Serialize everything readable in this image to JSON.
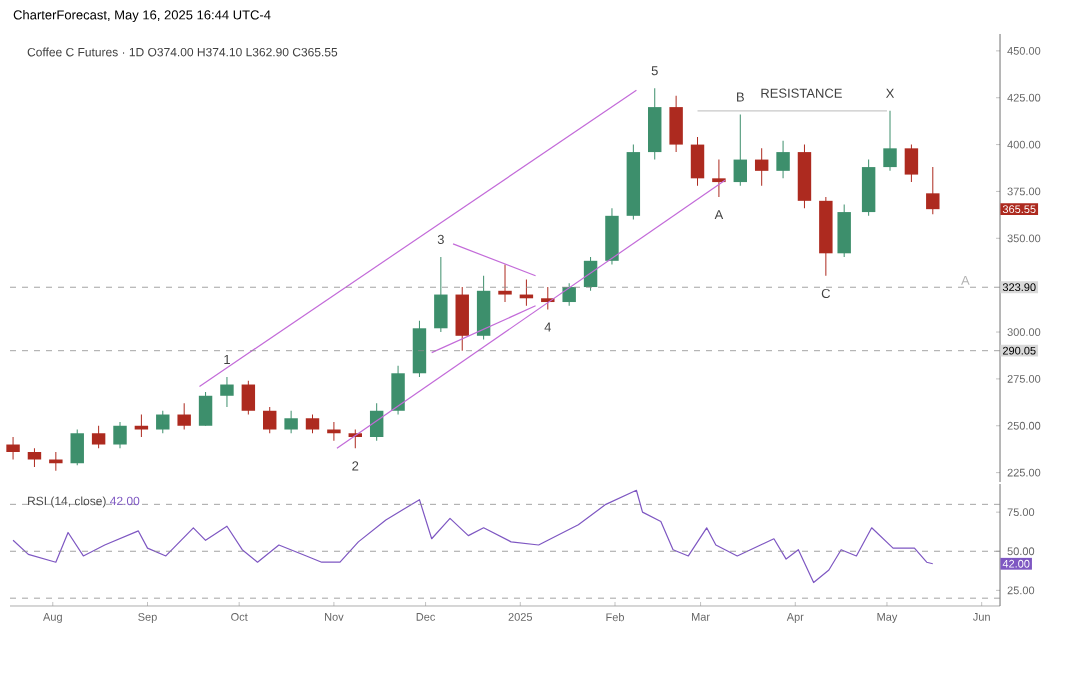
{
  "chart_data": [
    {
      "type": "candlestick",
      "title": "Coffee C Futures · 1D   O374.00 H374.10 L362.90 C365.55",
      "subtitle": "CharterForecast, May 16, 2025 16:44 UTC-4",
      "x": [
        "2024-07-19",
        "2024-07-26",
        "2024-08-02",
        "2024-08-09",
        "2024-08-16",
        "2024-08-23",
        "2024-08-30",
        "2024-09-06",
        "2024-09-13",
        "2024-09-20",
        "2024-09-27",
        "2024-10-04",
        "2024-10-11",
        "2024-10-18",
        "2024-10-25",
        "2024-11-01",
        "2024-11-08",
        "2024-11-15",
        "2024-11-22",
        "2024-11-29",
        "2024-12-06",
        "2024-12-13",
        "2024-12-20",
        "2024-12-27",
        "2025-01-03",
        "2025-01-10",
        "2025-01-17",
        "2025-01-24",
        "2025-01-31",
        "2025-02-07",
        "2025-02-14",
        "2025-02-21",
        "2025-02-28",
        "2025-03-07",
        "2025-03-14",
        "2025-03-21",
        "2025-03-28",
        "2025-04-04",
        "2025-04-11",
        "2025-04-17",
        "2025-04-25",
        "2025-05-02",
        "2025-05-09",
        "2025-05-16"
      ],
      "ohlc": [
        [
          240,
          244,
          232,
          236
        ],
        [
          236,
          238,
          228,
          232
        ],
        [
          232,
          236,
          226,
          230
        ],
        [
          230,
          248,
          229,
          246
        ],
        [
          246,
          250,
          238,
          240
        ],
        [
          240,
          252,
          238,
          250
        ],
        [
          250,
          256,
          244,
          248
        ],
        [
          248,
          258,
          246,
          256
        ],
        [
          256,
          262,
          248,
          250
        ],
        [
          250,
          268,
          250,
          266
        ],
        [
          266,
          276,
          260,
          272
        ],
        [
          272,
          274,
          256,
          258
        ],
        [
          258,
          260,
          246,
          248
        ],
        [
          248,
          258,
          246,
          254
        ],
        [
          254,
          256,
          246,
          248
        ],
        [
          248,
          252,
          242,
          246
        ],
        [
          246,
          248,
          238,
          244
        ],
        [
          244,
          262,
          242,
          258
        ],
        [
          258,
          282,
          256,
          278
        ],
        [
          278,
          306,
          276,
          302
        ],
        [
          302,
          340,
          300,
          320
        ],
        [
          320,
          324,
          290,
          298
        ],
        [
          298,
          330,
          296,
          322
        ],
        [
          322,
          336,
          316,
          320
        ],
        [
          320,
          328,
          314,
          318
        ],
        [
          318,
          324,
          312,
          316
        ],
        [
          316,
          326,
          314,
          324
        ],
        [
          324,
          340,
          322,
          338
        ],
        [
          338,
          366,
          336,
          362
        ],
        [
          362,
          400,
          360,
          396
        ],
        [
          396,
          430,
          392,
          420
        ],
        [
          420,
          426,
          396,
          400
        ],
        [
          400,
          404,
          378,
          382
        ],
        [
          382,
          392,
          372,
          380
        ],
        [
          380,
          416,
          378,
          392
        ],
        [
          392,
          398,
          378,
          386
        ],
        [
          386,
          402,
          382,
          396
        ],
        [
          396,
          400,
          366,
          370
        ],
        [
          370,
          372,
          330,
          342
        ],
        [
          342,
          368,
          340,
          364
        ],
        [
          364,
          392,
          362,
          388
        ],
        [
          388,
          418,
          386,
          398
        ],
        [
          398,
          400,
          380,
          384
        ],
        [
          374,
          388,
          362.9,
          365.55
        ]
      ],
      "colors": [
        "#ad2a1f",
        "#ad2a1f",
        "#ad2a1f",
        "#3d8f6c",
        "#ad2a1f",
        "#3d8f6c",
        "#ad2a1f",
        "#3d8f6c",
        "#ad2a1f",
        "#3d8f6c",
        "#3d8f6c",
        "#ad2a1f",
        "#ad2a1f",
        "#3d8f6c",
        "#ad2a1f",
        "#ad2a1f",
        "#ad2a1f",
        "#3d8f6c",
        "#3d8f6c",
        "#3d8f6c",
        "#3d8f6c",
        "#ad2a1f",
        "#3d8f6c",
        "#ad2a1f",
        "#ad2a1f",
        "#ad2a1f",
        "#3d8f6c",
        "#3d8f6c",
        "#3d8f6c",
        "#3d8f6c",
        "#3d8f6c",
        "#ad2a1f",
        "#ad2a1f",
        "#ad2a1f",
        "#3d8f6c",
        "#ad2a1f",
        "#3d8f6c",
        "#ad2a1f",
        "#ad2a1f",
        "#3d8f6c",
        "#3d8f6c",
        "#3d8f6c",
        "#ad2a1f",
        "#ad2a1f"
      ],
      "series": [
        {
          "type": "line",
          "color": "#c36bd9",
          "x": [
            "2024-09-18",
            "2025-02-08"
          ],
          "values": [
            271,
            429
          ]
        },
        {
          "type": "line",
          "color": "#c36bd9",
          "x": [
            "2024-11-02",
            "2025-03-09"
          ],
          "values": [
            238,
            381
          ]
        },
        {
          "type": "line",
          "color": "#c36bd9",
          "x": [
            "2024-12-10",
            "2025-01-06"
          ],
          "values": [
            347,
            330
          ]
        },
        {
          "type": "line",
          "color": "#c36bd9",
          "x": [
            "2024-12-03",
            "2025-01-06"
          ],
          "values": [
            289,
            314
          ]
        },
        {
          "type": "line",
          "color": "#c8c8c8",
          "x": [
            "2025-02-28",
            "2025-05-01"
          ],
          "values": [
            418,
            418
          ]
        }
      ],
      "xlim": [
        "2024-07-18",
        "2025-06-07"
      ],
      "ylim": [
        220,
        459
      ],
      "yticks": [
        {
          "value": 225,
          "label": "225.00"
        },
        {
          "value": 250,
          "label": "250.00"
        },
        {
          "value": 275,
          "label": "275.00"
        },
        {
          "value": 300,
          "label": "300.00"
        },
        {
          "value": 350,
          "label": "350.00"
        },
        {
          "value": 375,
          "label": "375.00"
        },
        {
          "value": 400,
          "label": "400.00"
        },
        {
          "value": 425,
          "label": "425.00"
        },
        {
          "value": 450,
          "label": "450.00"
        }
      ],
      "tick_labels": "y",
      "ref_lines": [
        {
          "axis": "y",
          "value": 323.9,
          "label": "323.90",
          "line_style": "dashed"
        },
        {
          "axis": "y",
          "value": 290.05,
          "label": "290.05",
          "line_style": "dashed"
        }
      ],
      "annotations": [
        {
          "text": "1",
          "x": "2024-09-27",
          "y": 276
        },
        {
          "text": "2",
          "x": "2024-11-08",
          "y": 238
        },
        {
          "text": "3",
          "x": "2024-12-06",
          "y": 340
        },
        {
          "text": "4",
          "x": "2025-01-10",
          "y": 312
        },
        {
          "text": "5",
          "x": "2025-02-14",
          "y": 430
        },
        {
          "text": "A",
          "x": "2025-03-07",
          "y": 372
        },
        {
          "text": "B",
          "x": "2025-03-14",
          "y": 416
        },
        {
          "text": "RESISTANCE",
          "x": "2025-04-03",
          "y": 418
        },
        {
          "text": "X",
          "x": "2025-05-02",
          "y": 418
        },
        {
          "text": "C",
          "x": "2025-04-11",
          "y": 330
        },
        "A",
        "365.55"
      ]
    },
    {
      "type": "line",
      "title": "RSI (14, close)",
      "series": [
        {
          "color": "#7e57c2",
          "x": [
            "2024-07-19",
            "2024-07-24",
            "2024-08-02",
            "2024-08-06",
            "2024-08-11",
            "2024-08-18",
            "2024-08-29",
            "2024-09-01",
            "2024-09-07",
            "2024-09-16",
            "2024-09-20",
            "2024-09-27",
            "2024-10-02",
            "2024-10-07",
            "2024-10-14",
            "2024-10-23",
            "2024-10-28",
            "2024-11-03",
            "2024-11-09",
            "2024-11-18",
            "2024-11-29",
            "2024-12-03",
            "2024-12-09",
            "2024-12-15",
            "2024-12-20",
            "2024-12-29",
            "2025-01-07",
            "2025-01-11",
            "2025-01-20",
            "2025-01-29",
            "2025-02-08",
            "2025-02-10",
            "2025-02-16",
            "2025-02-20",
            "2025-02-25",
            "2025-03-03",
            "2025-03-06",
            "2025-03-13",
            "2025-03-25",
            "2025-03-29",
            "2025-04-02",
            "2025-04-07",
            "2025-04-12",
            "2025-04-16",
            "2025-04-21",
            "2025-04-26",
            "2025-05-03",
            "2025-05-10",
            "2025-05-14",
            "2025-05-16"
          ],
          "values": [
            57,
            48,
            43,
            62,
            47,
            54,
            63,
            52,
            47,
            65,
            57,
            66,
            51,
            43,
            54,
            47,
            43,
            43,
            56,
            70,
            83,
            58,
            71,
            60,
            65,
            56,
            54,
            58,
            67,
            80,
            89,
            75,
            69,
            51,
            47,
            65,
            54,
            47,
            58,
            45,
            51,
            30,
            38,
            51,
            47,
            65,
            52,
            52,
            43,
            42
          ]
        }
      ],
      "xlim": [
        "2024-07-18",
        "2025-06-07"
      ],
      "ylim": [
        15,
        93
      ],
      "xticks": [
        {
          "value": "2024-08-01",
          "label": "Aug"
        },
        {
          "value": "2024-09-01",
          "label": "Sep"
        },
        {
          "value": "2024-10-01",
          "label": "Oct"
        },
        {
          "value": "2024-11-01",
          "label": "Nov"
        },
        {
          "value": "2024-12-01",
          "label": "Dec"
        },
        {
          "value": "2025-01-01",
          "label": "2025"
        },
        {
          "value": "2025-02-01",
          "label": "Feb"
        },
        {
          "value": "2025-03-01",
          "label": "Mar"
        },
        {
          "value": "2025-04-01",
          "label": "Apr"
        },
        {
          "value": "2025-05-01",
          "label": "May"
        },
        {
          "value": "2025-06-01",
          "label": "Jun"
        }
      ],
      "yticks": [
        {
          "value": 25,
          "label": "25.00"
        },
        {
          "value": 50,
          "label": "50.00"
        },
        {
          "value": 75,
          "label": "75.00"
        }
      ],
      "ref_lines": [
        {
          "axis": "y",
          "value": 80,
          "line_style": "dashed"
        },
        {
          "axis": "y",
          "value": 50,
          "line_style": "dashed"
        },
        {
          "axis": "y",
          "value": 20,
          "line_style": "dashed"
        }
      ],
      "annotations": [
        "42.00",
        "42.00"
      ]
    }
  ]
}
